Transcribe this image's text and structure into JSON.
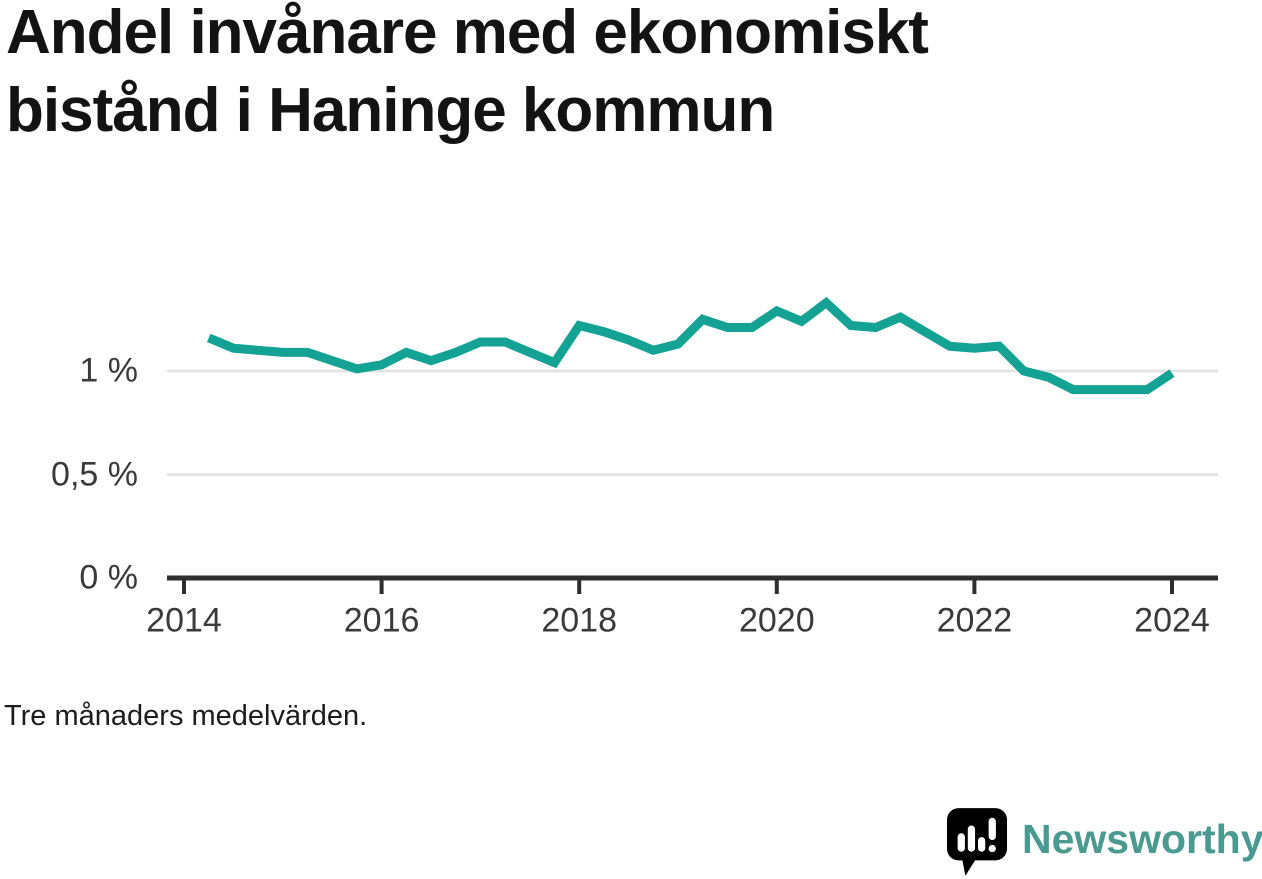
{
  "title": {
    "line1": "Andel invånare med ekonomiskt",
    "line2": "bistånd i Haninge kommun"
  },
  "footnote": "Tre månaders medelvärden.",
  "logo": {
    "text": "Newsworthy",
    "icon": "newsworthy-speech-bubble-bar-chart-icon"
  },
  "colors": {
    "line": "#14a295",
    "logo": "#4a9a92",
    "axis": "#2e2e2e",
    "grid": "#e4e4e4",
    "tick_text": "#3a3a3a",
    "title_text": "#131313"
  },
  "chart_data": {
    "type": "line",
    "title": "Andel invånare med ekonomiskt bistånd i Haninge kommun",
    "subtitle": "",
    "xlabel": "",
    "ylabel": "",
    "unit": "%",
    "note": "Tre månaders medelvärden.",
    "legend": "none",
    "grid": "horizontal",
    "x_start": 2014.25,
    "x_step": 0.25,
    "x": [
      2014.25,
      2014.5,
      2014.75,
      2015.0,
      2015.25,
      2015.5,
      2015.75,
      2016.0,
      2016.25,
      2016.5,
      2016.75,
      2017.0,
      2017.25,
      2017.5,
      2017.75,
      2018.0,
      2018.25,
      2018.5,
      2018.75,
      2019.0,
      2019.25,
      2019.5,
      2019.75,
      2020.0,
      2020.25,
      2020.5,
      2020.75,
      2021.0,
      2021.25,
      2021.5,
      2021.75,
      2022.0,
      2022.25,
      2022.5,
      2022.75,
      2023.0,
      2023.25,
      2023.5,
      2023.75,
      2024.0
    ],
    "values": [
      1.16,
      1.11,
      1.1,
      1.09,
      1.09,
      1.05,
      1.01,
      1.03,
      1.09,
      1.05,
      1.09,
      1.14,
      1.14,
      1.09,
      1.04,
      1.22,
      1.19,
      1.15,
      1.1,
      1.13,
      1.25,
      1.21,
      1.21,
      1.29,
      1.24,
      1.33,
      1.22,
      1.21,
      1.26,
      1.19,
      1.12,
      1.11,
      1.12,
      1.0,
      0.97,
      0.91,
      0.91,
      0.91,
      0.91,
      0.99
    ],
    "x_ticks": [
      {
        "v": 2014,
        "label": "2014"
      },
      {
        "v": 2016,
        "label": "2016"
      },
      {
        "v": 2018,
        "label": "2018"
      },
      {
        "v": 2020,
        "label": "2020"
      },
      {
        "v": 2022,
        "label": "2022"
      },
      {
        "v": 2024,
        "label": "2024"
      }
    ],
    "y_ticks": [
      {
        "v": 0,
        "label": "0 %"
      },
      {
        "v": 0.5,
        "label": "0,5 %"
      },
      {
        "v": 1,
        "label": "1 %"
      }
    ],
    "x_range": [
      2013.83,
      2024.47
    ],
    "y_range": [
      0,
      1.45
    ]
  }
}
